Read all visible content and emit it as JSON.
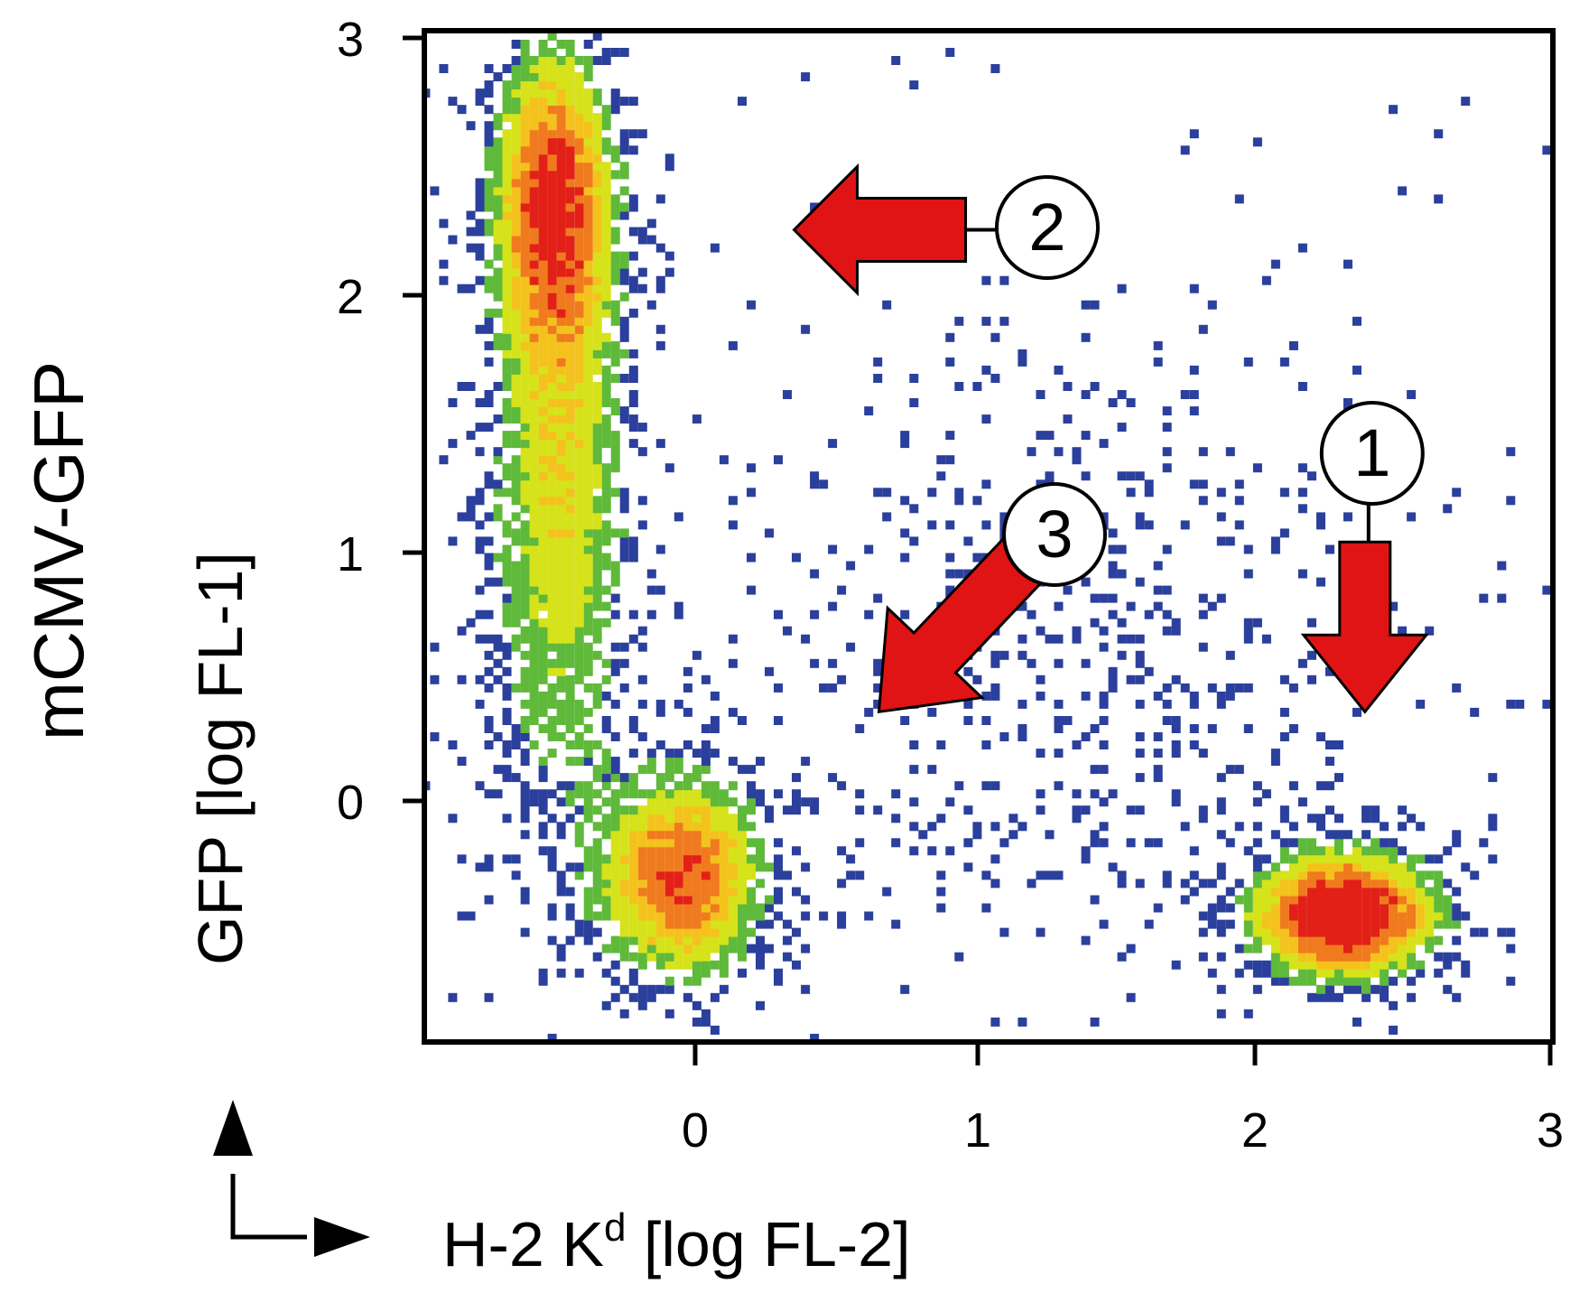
{
  "chart_data": {
    "type": "heatmap",
    "subtype": "flow-cytometry-density-scatter",
    "ylabel_outer": "mCMV-GFP",
    "ylabel": "GFP [log FL-1]",
    "xlabel_main": "H-2 K",
    "xlabel_sup": "d",
    "xlabel_rest": " [log FL-2]",
    "x_ticks": [
      "0",
      "1",
      "2",
      "3"
    ],
    "y_ticks": [
      "0",
      "1",
      "2",
      "3"
    ],
    "xlim": [
      -0.97,
      3.0
    ],
    "ylim": [
      -0.95,
      3.0
    ],
    "grid": false,
    "colormap": [
      "#2b3f9c",
      "#5fb93a",
      "#d6e21a",
      "#f4c21c",
      "#f07a1e",
      "#e22018"
    ],
    "populations": [
      {
        "center": [
          -0.5,
          2.35
        ],
        "spread": [
          0.13,
          0.38
        ],
        "peak": "high"
      },
      {
        "center": [
          -0.48,
          1.2
        ],
        "spread": [
          0.16,
          0.8
        ],
        "peak": "medium"
      },
      {
        "center": [
          -0.05,
          -0.3
        ],
        "spread": [
          0.18,
          0.25
        ],
        "peak": "high"
      },
      {
        "center": [
          2.3,
          -0.45
        ],
        "spread": [
          0.2,
          0.15
        ],
        "peak": "very-high"
      },
      {
        "center": [
          1.3,
          0.6
        ],
        "spread": [
          0.7,
          0.7
        ],
        "peak": "sparse"
      }
    ],
    "annotations": [
      {
        "label": "1",
        "arrow_direction": "down",
        "tip": [
          2.37,
          0.35
        ]
      },
      {
        "label": "2",
        "arrow_direction": "left",
        "tip": [
          0.35,
          2.25
        ]
      },
      {
        "label": "3",
        "arrow_direction": "down-left",
        "tip": [
          0.65,
          0.35
        ]
      }
    ],
    "color_red": "#e01414",
    "color_frame": "#000000"
  }
}
